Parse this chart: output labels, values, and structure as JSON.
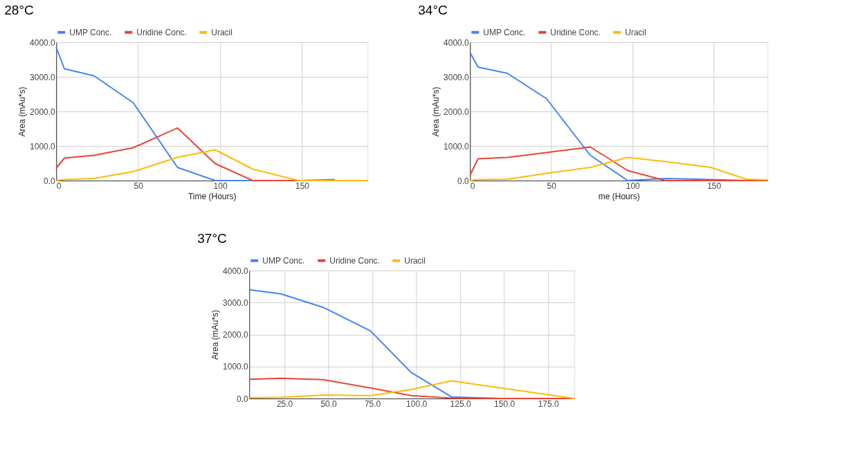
{
  "chart_data": [
    {
      "type": "line",
      "title": "28°C",
      "xlabel": "Time (Hours)",
      "ylabel": "Area (mAu*s)",
      "legend": "top",
      "grid": true,
      "x": [
        0,
        5,
        23,
        47,
        74,
        97,
        120,
        148,
        170,
        190
      ],
      "xlim": [
        0,
        190
      ],
      "xticks": [
        0,
        50,
        100,
        150
      ],
      "ylim": [
        0,
        4000
      ],
      "yticks": [
        {
          "value": 0,
          "label": "0.0"
        },
        {
          "value": 1000,
          "label": "1000.0"
        },
        {
          "value": 2000,
          "label": "2000.0"
        },
        {
          "value": 3000,
          "label": "3000.0"
        },
        {
          "value": 4000,
          "label": "4000.0"
        }
      ],
      "series": [
        {
          "name": "UMP Conc.",
          "color": "#4285f4",
          "values": [
            3850,
            3230,
            3030,
            2250,
            380,
            0,
            0,
            0,
            30,
            null
          ]
        },
        {
          "name": "Uridine Conc.",
          "color": "#ea4335",
          "values": [
            360,
            650,
            730,
            950,
            1520,
            490,
            0,
            0,
            0,
            0
          ]
        },
        {
          "name": "Uracil",
          "color": "#fbbc04",
          "values": [
            0,
            30,
            60,
            260,
            670,
            890,
            330,
            0,
            0,
            0
          ]
        }
      ]
    },
    {
      "type": "line",
      "title": "34°C",
      "xlabel": "me (Hours)",
      "ylabel": "Area (mAu*s)",
      "legend": "top",
      "grid": true,
      "x": [
        0,
        5,
        23,
        47,
        74,
        97,
        120,
        148,
        170,
        183
      ],
      "xlim": [
        0,
        183
      ],
      "xticks": [
        0,
        50,
        100,
        150
      ],
      "ylim": [
        0,
        4000
      ],
      "yticks": [
        {
          "value": 0,
          "label": "0.0"
        },
        {
          "value": 1000,
          "label": "1000.0"
        },
        {
          "value": 2000,
          "label": "2000.0"
        },
        {
          "value": 3000,
          "label": "3000.0"
        },
        {
          "value": 4000,
          "label": "4000.0"
        }
      ],
      "series": [
        {
          "name": "UMP Conc.",
          "color": "#4285f4",
          "values": [
            3700,
            3280,
            3100,
            2370,
            730,
            0,
            60,
            30,
            0,
            0
          ]
        },
        {
          "name": "Uridine Conc.",
          "color": "#ea4335",
          "values": [
            160,
            630,
            670,
            810,
            970,
            290,
            0,
            0,
            0,
            0
          ]
        },
        {
          "name": "Uracil",
          "color": "#fbbc04",
          "values": [
            0,
            30,
            40,
            210,
            380,
            670,
            550,
            380,
            40,
            20
          ]
        }
      ]
    },
    {
      "type": "line",
      "title": "37°C",
      "ylabel": "Area (mAu*s)",
      "legend": "top",
      "grid": true,
      "x": [
        5,
        23,
        47,
        74,
        97,
        120,
        148,
        190
      ],
      "xlim": [
        5,
        190
      ],
      "xticks": [
        {
          "value": 25,
          "label": "25.0"
        },
        {
          "value": 50,
          "label": "50.0"
        },
        {
          "value": 75,
          "label": "75.0"
        },
        {
          "value": 100,
          "label": "100.0"
        },
        {
          "value": 125,
          "label": "125.0"
        },
        {
          "value": 150,
          "label": "150.0"
        },
        {
          "value": 175,
          "label": "175.0"
        }
      ],
      "ylim": [
        0,
        4000
      ],
      "yticks": [
        {
          "value": 0,
          "label": "0.0"
        },
        {
          "value": 1000,
          "label": "1000.0"
        },
        {
          "value": 2000,
          "label": "2000.0"
        },
        {
          "value": 3000,
          "label": "3000.0"
        },
        {
          "value": 4000,
          "label": "4000.0"
        }
      ],
      "series": [
        {
          "name": "UMP Conc.",
          "color": "#4285f4",
          "values": [
            3400,
            3270,
            2850,
            2110,
            820,
            50,
            0,
            0
          ]
        },
        {
          "name": "Uridine Conc.",
          "color": "#ea4335",
          "values": [
            600,
            630,
            590,
            330,
            90,
            10,
            0,
            0
          ]
        },
        {
          "name": "Uracil",
          "color": "#fbbc04",
          "values": [
            20,
            40,
            110,
            90,
            280,
            550,
            330,
            0
          ]
        }
      ]
    }
  ]
}
